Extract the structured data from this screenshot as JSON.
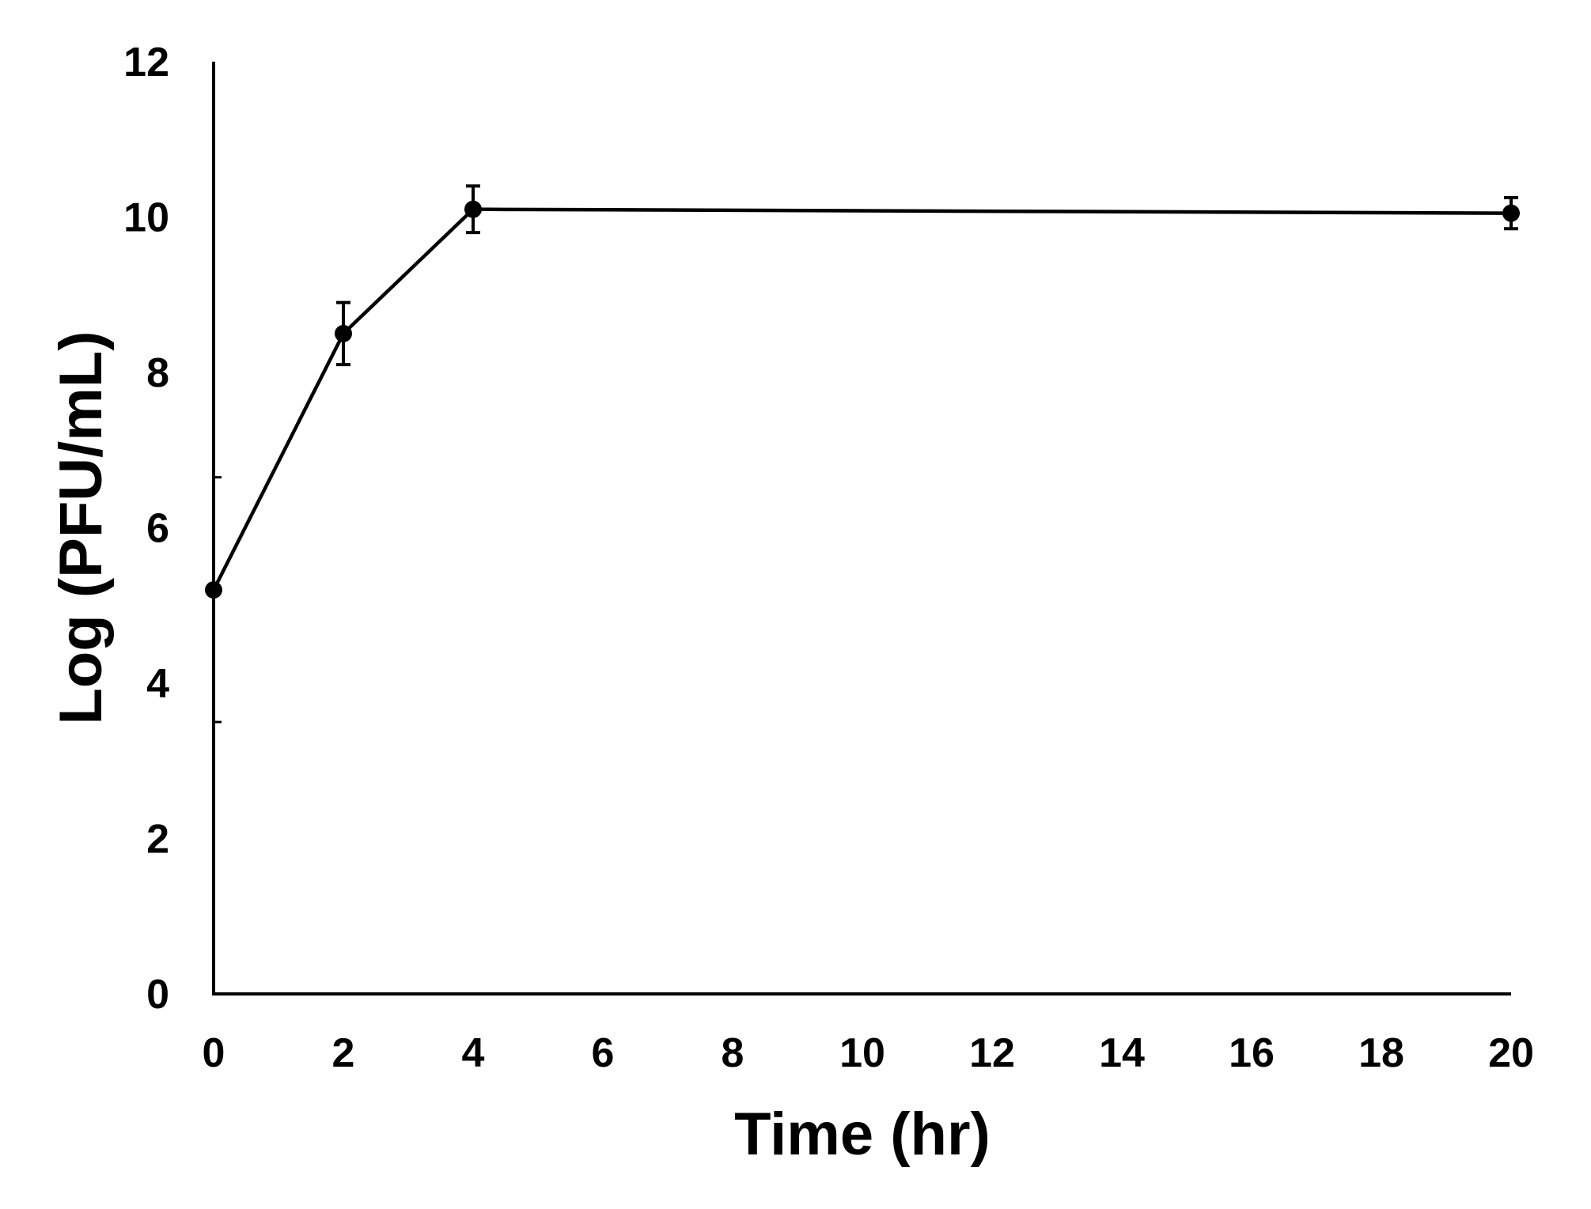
{
  "chart_data": {
    "type": "line",
    "title": "",
    "xlabel": "Time (hr)",
    "ylabel": "Log (PFU/mL)",
    "xlim": [
      0,
      20
    ],
    "ylim": [
      0,
      12
    ],
    "x_ticks": [
      "0",
      "2",
      "4",
      "6",
      "8",
      "10",
      "12",
      "14",
      "16",
      "18",
      "20"
    ],
    "y_ticks": [
      "0",
      "2",
      "4",
      "6",
      "8",
      "10",
      "12"
    ],
    "grid": false,
    "legend": "none",
    "series": [
      {
        "x": [
          0,
          2,
          4,
          20
        ],
        "y": [
          5.2,
          8.5,
          10.1,
          10.05
        ],
        "error": [
          0,
          0.4,
          0.3,
          0.2
        ],
        "color": "#000000"
      }
    ]
  }
}
